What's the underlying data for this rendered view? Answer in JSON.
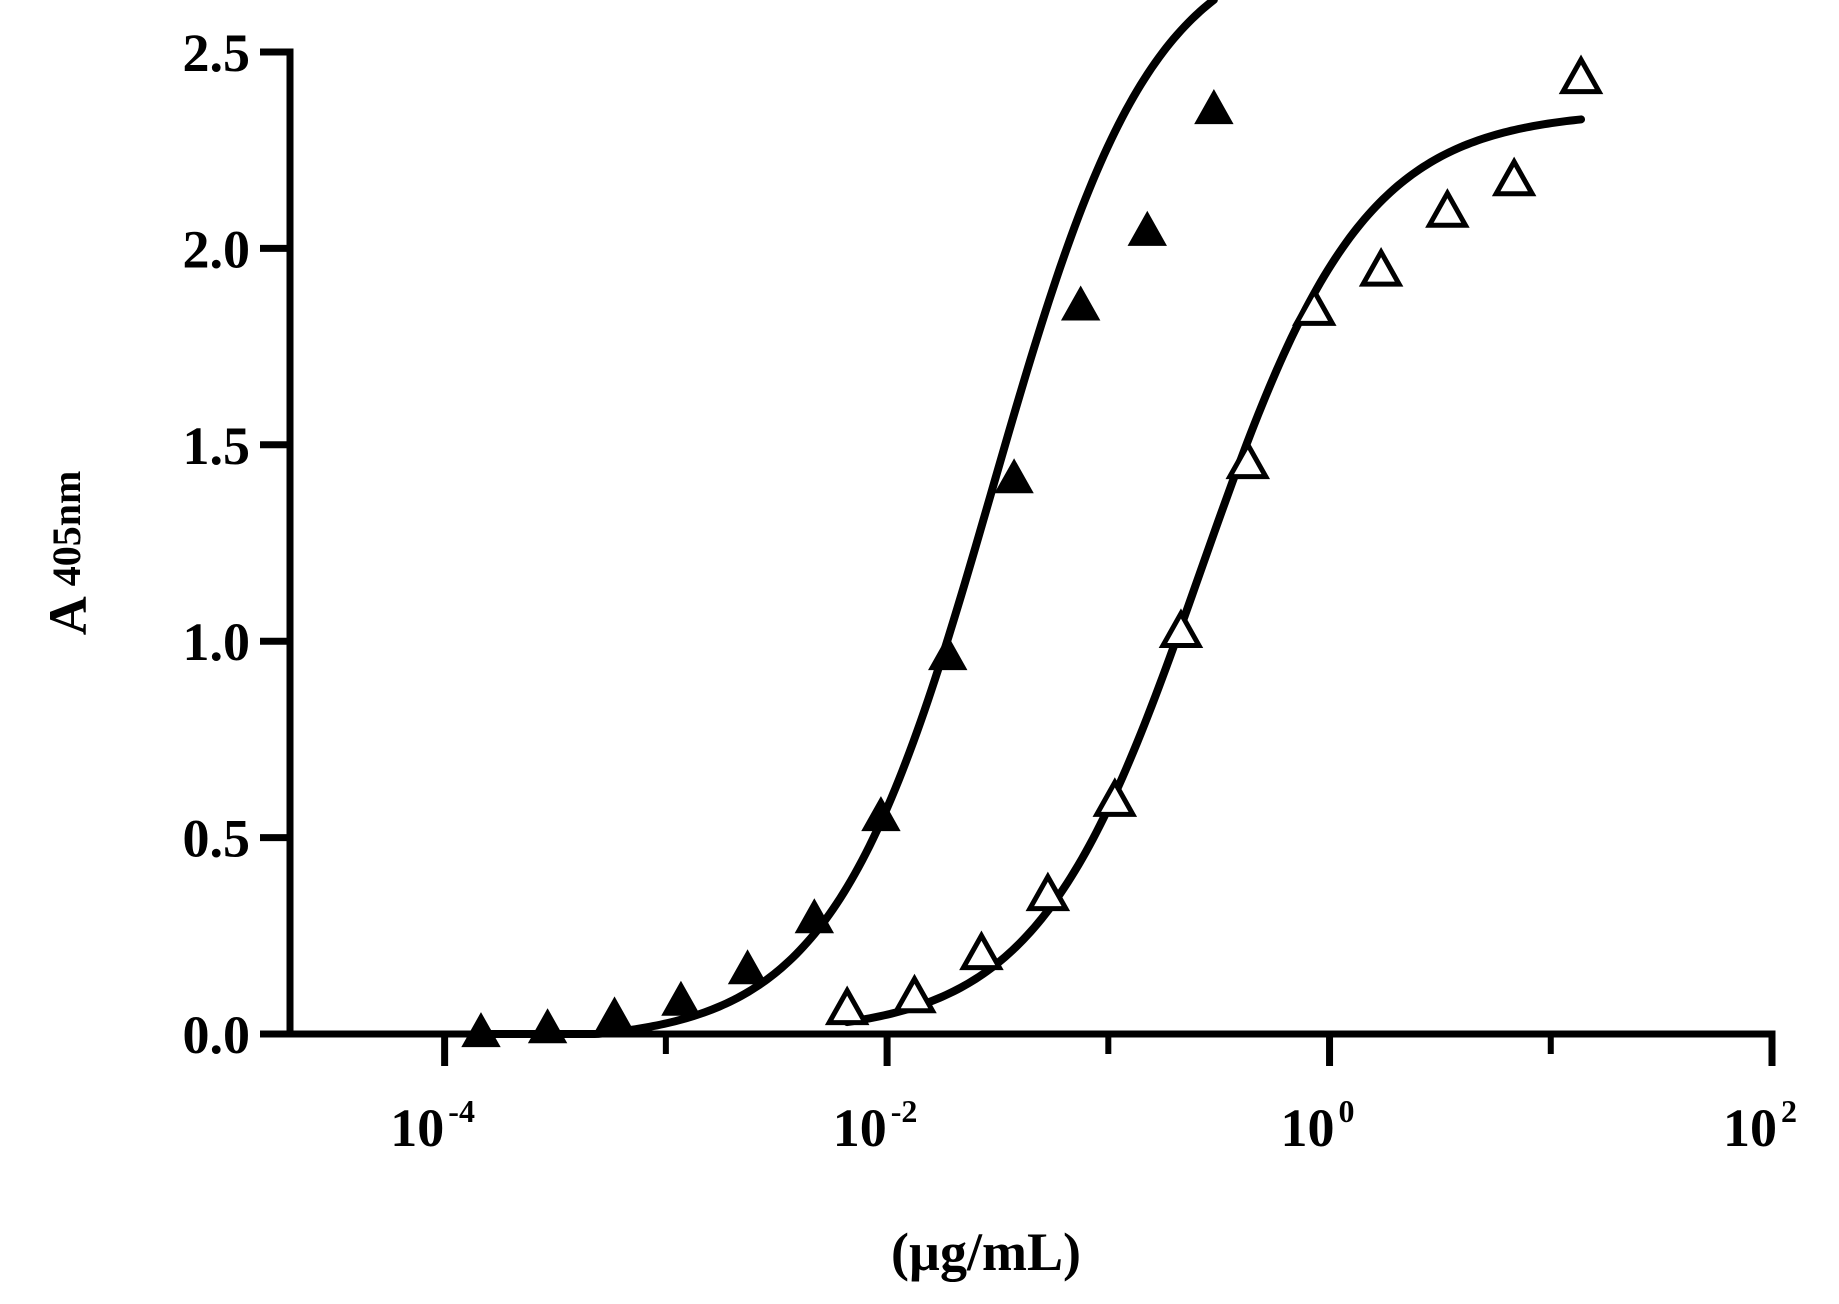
{
  "chart_data": {
    "type": "scatter",
    "title": "",
    "xlabel": "(µg/mL)",
    "ylabel": {
      "main": "A",
      "sub": "405nm"
    },
    "x_scale": "log",
    "xlim": [
      2e-05,
      100
    ],
    "ylim": [
      0,
      2.5
    ],
    "grid": false,
    "legend": "none",
    "x_ticks": [
      {
        "value": 0.0001,
        "base": "10",
        "exp": "-4"
      },
      {
        "value": 0.01,
        "base": "10",
        "exp": "-2"
      },
      {
        "value": 1,
        "base": "10",
        "exp": "0"
      },
      {
        "value": 100,
        "base": "10",
        "exp": "2"
      }
    ],
    "y_ticks": [
      {
        "value": 0,
        "label": "0.0"
      },
      {
        "value": 0.5,
        "label": "0.5"
      },
      {
        "value": 1,
        "label": "1.0"
      },
      {
        "value": 1.5,
        "label": "1.5"
      },
      {
        "value": 2,
        "label": "2.0"
      },
      {
        "value": 2.5,
        "label": "2.5"
      }
    ],
    "series": [
      {
        "marker": "filled-triangle",
        "color": "#000000",
        "points": [
          {
            "x": 0.000146,
            "y": 0.0
          },
          {
            "x": 0.000292,
            "y": 0.01
          },
          {
            "x": 0.000586,
            "y": 0.04
          },
          {
            "x": 0.00117,
            "y": 0.08
          },
          {
            "x": 0.00234,
            "y": 0.16
          },
          {
            "x": 0.00469,
            "y": 0.29
          },
          {
            "x": 0.00938,
            "y": 0.55
          },
          {
            "x": 0.0188,
            "y": 0.96
          },
          {
            "x": 0.0375,
            "y": 1.41
          },
          {
            "x": 0.075,
            "y": 1.85
          },
          {
            "x": 0.15,
            "y": 2.04
          },
          {
            "x": 0.3,
            "y": 2.35
          }
        ],
        "fit": {
          "bottom": -0.02,
          "top": 2.8,
          "ec50": 0.03,
          "hill": 1.2
        }
      },
      {
        "marker": "open-triangle",
        "color": "#000000",
        "points": [
          {
            "x": 0.0066,
            "y": 0.06
          },
          {
            "x": 0.0133,
            "y": 0.09
          },
          {
            "x": 0.0267,
            "y": 0.2
          },
          {
            "x": 0.0533,
            "y": 0.35
          },
          {
            "x": 0.107,
            "y": 0.59
          },
          {
            "x": 0.213,
            "y": 1.02
          },
          {
            "x": 0.427,
            "y": 1.45
          },
          {
            "x": 0.853,
            "y": 1.84
          },
          {
            "x": 1.71,
            "y": 1.94
          },
          {
            "x": 3.41,
            "y": 2.09
          },
          {
            "x": 6.83,
            "y": 2.17
          },
          {
            "x": 13.7,
            "y": 2.43
          }
        ],
        "fit": {
          "bottom": 0.0,
          "top": 2.35,
          "ec50": 0.26,
          "hill": 1.18
        }
      }
    ]
  }
}
